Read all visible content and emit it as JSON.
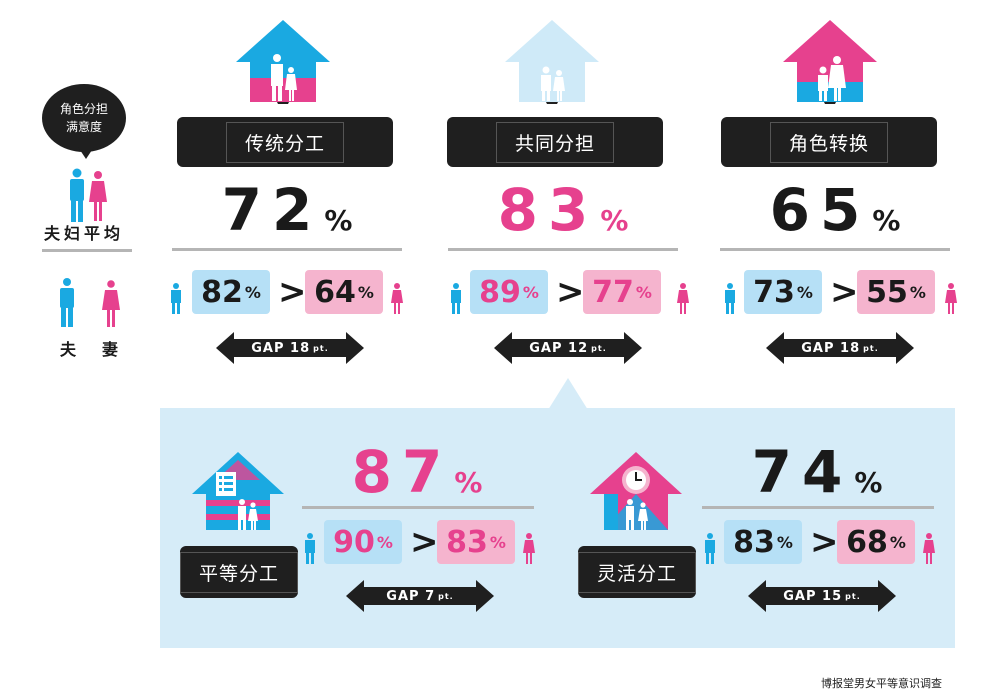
{
  "legend": {
    "bubble_line1": "角色分担",
    "bubble_line2": "满意度",
    "avg_label": "夫妇平均",
    "husband_label": "夫",
    "wife_label": "妻"
  },
  "source": "博报堂男女平等意识调查",
  "colors": {
    "blue": "#1aa9e1",
    "pink": "#e6418e",
    "blue_light": "#b6e0f6",
    "pink_light": "#f5b4ce",
    "dark": "#1f1f1f"
  },
  "chart_data": {
    "type": "table",
    "title": "",
    "unit": "%",
    "categories": [
      "传统分工",
      "共同分担",
      "角色转换",
      "平等分工",
      "灵活分工"
    ],
    "series": [
      {
        "name": "夫妇平均",
        "values": [
          72,
          83,
          65,
          87,
          74
        ]
      },
      {
        "name": "夫",
        "values": [
          82,
          89,
          73,
          90,
          83
        ]
      },
      {
        "name": "妻",
        "values": [
          64,
          77,
          55,
          83,
          68
        ]
      },
      {
        "name": "GAP",
        "values": [
          18,
          12,
          18,
          7,
          15
        ]
      }
    ]
  },
  "groups": [
    {
      "label": "传统分工",
      "avg": "72",
      "husband": "82",
      "wife": "64",
      "gap_text": "GAP 18",
      "pt": "pt.",
      "avg_color": "#1a1a1a",
      "pair_color": "#1a1a1a"
    },
    {
      "label": "共同分担",
      "avg": "83",
      "husband": "89",
      "wife": "77",
      "gap_text": "GAP 12",
      "pt": "pt.",
      "avg_color": "#e6418e",
      "pair_color": "#e6418e"
    },
    {
      "label": "角色转换",
      "avg": "65",
      "husband": "73",
      "wife": "55",
      "gap_text": "GAP 18",
      "pt": "pt.",
      "avg_color": "#1a1a1a",
      "pair_color": "#1a1a1a"
    },
    {
      "label": "平等分工",
      "avg": "87",
      "husband": "90",
      "wife": "83",
      "gap_text": "GAP 7",
      "pt": "pt.",
      "avg_color": "#e6418e",
      "pair_color": "#e6418e"
    },
    {
      "label": "灵活分工",
      "avg": "74",
      "husband": "83",
      "wife": "68",
      "gap_text": "GAP 15",
      "pt": "pt.",
      "avg_color": "#1a1a1a",
      "pair_color": "#1a1a1a"
    }
  ],
  "pct_unit": "%",
  "gt_symbol": ">"
}
